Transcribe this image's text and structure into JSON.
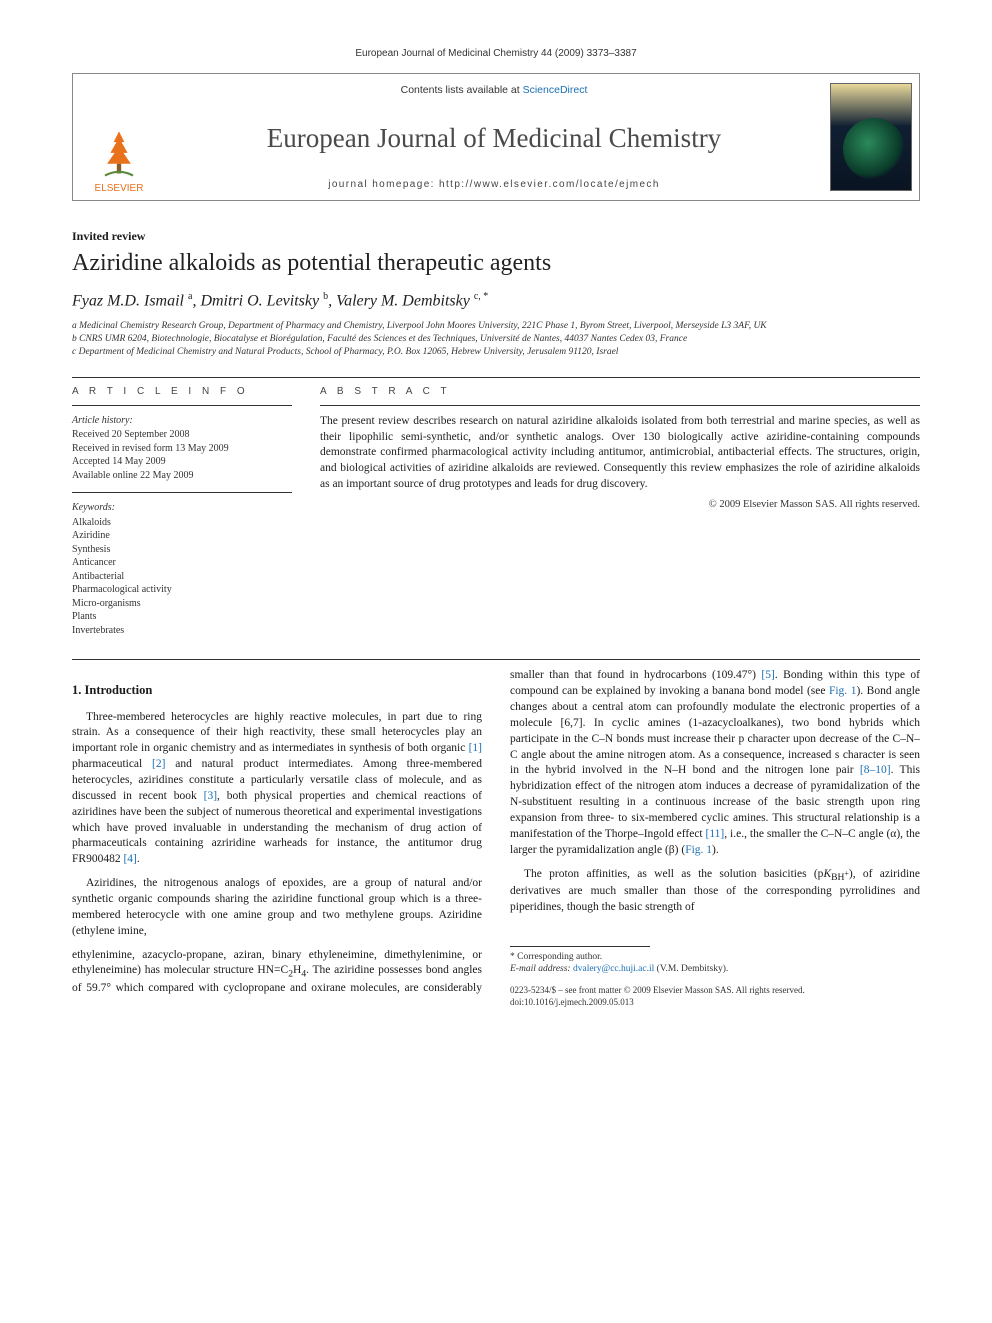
{
  "header": {
    "citation": "European Journal of Medicinal Chemistry 44 (2009) 3373–3387",
    "contents_prefix": "Contents lists available at ",
    "contents_link": "ScienceDirect",
    "journal_title": "European Journal of Medicinal Chemistry",
    "homepage_prefix": "journal homepage: ",
    "homepage_url": "http://www.elsevier.com/locate/ejmech",
    "publisher_label": "ELSEVIER"
  },
  "article": {
    "type": "Invited review",
    "title": "Aziridine alkaloids as potential therapeutic agents",
    "authors_html": "Fyaz M.D. Ismail <sup>a</sup>, Dmitri O. Levitsky <sup>b</sup>, Valery M. Dembitsky <sup>c, *</sup>",
    "affiliations": {
      "a": "a Medicinal Chemistry Research Group, Department of Pharmacy and Chemistry, Liverpool John Moores University, 221C Phase 1, Byrom Street, Liverpool, Merseyside L3 3AF, UK",
      "b": "b CNRS UMR 6204, Biotechnologie, Biocatalyse et Biorégulation, Faculté des Sciences et des Techniques, Université de Nantes, 44037 Nantes Cedex 03, France",
      "c": "c Department of Medicinal Chemistry and Natural Products, School of Pharmacy, P.O. Box 12065, Hebrew University, Jerusalem 91120, Israel"
    }
  },
  "info": {
    "heading": "A R T I C L E   I N F O",
    "history_label": "Article history:",
    "received": "Received 20 September 2008",
    "revised": "Received in revised form 13 May 2009",
    "accepted": "Accepted 14 May 2009",
    "online": "Available online 22 May 2009",
    "keywords_label": "Keywords:",
    "keywords": [
      "Alkaloids",
      "Aziridine",
      "Synthesis",
      "Anticancer",
      "Antibacterial",
      "Pharmacological activity",
      "Micro-organisms",
      "Plants",
      "Invertebrates"
    ]
  },
  "abstract": {
    "heading": "A B S T R A C T",
    "text": "The present review describes research on natural aziridine alkaloids isolated from both terrestrial and marine species, as well as their lipophilic semi-synthetic, and/or synthetic analogs. Over 130 biologically active aziridine-containing compounds demonstrate confirmed pharmacological activity including antitumor, antimicrobial, antibacterial effects. The structures, origin, and biological activities of aziridine alkaloids are reviewed. Consequently this review emphasizes the role of aziridine alkaloids as an important source of drug prototypes and leads for drug discovery.",
    "copyright": "© 2009 Elsevier Masson SAS. All rights reserved."
  },
  "body": {
    "section1_heading": "1. Introduction",
    "p1": "Three-membered heterocycles are highly reactive molecules, in part due to ring strain. As a consequence of their high reactivity, these small heterocycles play an important role in organic chemistry and as intermediates in synthesis of both organic [1] pharmaceutical [2] and natural product intermediates. Among three-membered heterocycles, aziridines constitute a particularly versatile class of molecule, and as discussed in recent book [3], both physical properties and chemical reactions of aziridines have been the subject of numerous theoretical and experimental investigations which have proved invaluable in understanding the mechanism of drug action of pharmaceuticals containing azriridine warheads for instance, the antitumor drug FR900482 [4].",
    "p2": "Aziridines, the nitrogenous analogs of epoxides, are a group of natural and/or synthetic organic compounds sharing the aziridine functional group which is a three-membered heterocycle with one amine group and two methylene groups. Aziridine (ethylene imine,",
    "p3": "ethylenimine, azacyclo-propane, aziran, binary ethyleneimine, dimethylenimine, or ethyleneimine) has molecular structure HN=C2H4. The aziridine possesses bond angles of 59.7° which compared with cyclopropane and oxirane molecules, are considerably smaller than that found in hydrocarbons (109.47°) [5]. Bonding within this type of compound can be explained by invoking a banana bond model (see Fig. 1). Bond angle changes about a central atom can profoundly modulate the electronic properties of a molecule [6,7]. In cyclic amines (1-azacycloalkanes), two bond hybrids which participate in the C–N bonds must increase their p character upon decrease of the C–N–C angle about the amine nitrogen atom. As a consequence, increased s character is seen in the hybrid involved in the N–H bond and the nitrogen lone pair [8–10]. This hybridization effect of the nitrogen atom induces a decrease of pyramidalization of the N-substituent resulting in a continuous increase of the basic strength upon ring expansion from three- to six-membered cyclic amines. This structural relationship is a manifestation of the Thorpe–Ingold effect [11], i.e., the smaller the C–N–C angle (α), the larger the pyramidalization angle (β) (Fig. 1).",
    "p4": "The proton affinities, as well as the solution basicities (pKBH+), of aziridine derivatives are much smaller than those of the corresponding pyrrolidines and piperidines, though the basic strength of"
  },
  "footnotes": {
    "corr": "* Corresponding author.",
    "email_label": "E-mail address:",
    "email": "dvalery@cc.huji.ac.il",
    "email_person": "(V.M. Dembitsky).",
    "issn_line": "0223-5234/$ – see front matter © 2009 Elsevier Masson SAS. All rights reserved.",
    "doi": "doi:10.1016/j.ejmech.2009.05.013"
  },
  "colors": {
    "link": "#1b6fb3",
    "publisher_orange": "#e9711c",
    "text": "#1a1a1a",
    "rule": "#333333"
  }
}
